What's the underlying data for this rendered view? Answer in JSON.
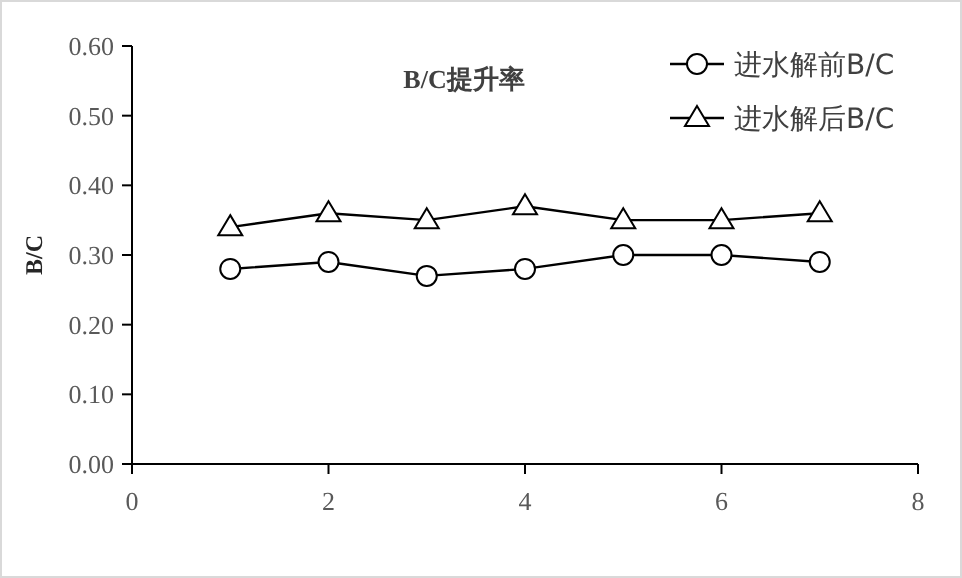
{
  "chart_data": {
    "type": "line",
    "title": "B/C提升率",
    "ylabel": "B/C",
    "x": [
      1,
      2,
      3,
      4,
      5,
      6,
      7
    ],
    "series": [
      {
        "name": "进水解前B/C",
        "color": "#000000",
        "marker": "circle",
        "values": [
          0.28,
          0.29,
          0.27,
          0.28,
          0.3,
          0.3,
          0.29
        ]
      },
      {
        "name": "进水解后B/C",
        "color": "#000000",
        "marker": "triangle",
        "values": [
          0.34,
          0.36,
          0.35,
          0.37,
          0.35,
          0.35,
          0.36
        ]
      }
    ],
    "xlim": [
      0,
      8
    ],
    "xticks": [
      0,
      2,
      4,
      6,
      8
    ],
    "ylim": [
      0,
      0.6
    ],
    "yticks": [
      {
        "value": 0,
        "label": "0.00"
      },
      {
        "value": 0.1,
        "label": "0.10"
      },
      {
        "value": 0.2,
        "label": "0.20"
      },
      {
        "value": 0.3,
        "label": "0.30"
      },
      {
        "value": 0.4,
        "label": "0.40"
      },
      {
        "value": 0.5,
        "label": "0.50"
      },
      {
        "value": 0.6,
        "label": "0.60"
      }
    ],
    "legend": "top right",
    "line_style": "solid"
  }
}
